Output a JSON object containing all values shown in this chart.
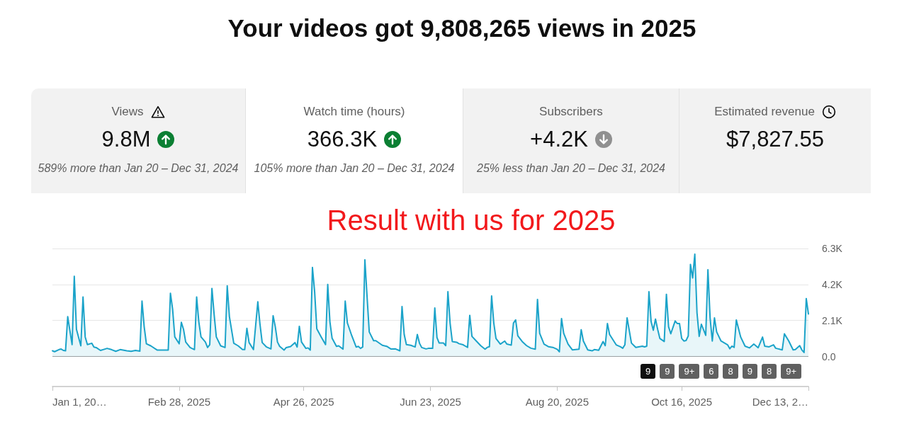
{
  "chart_data": [
    {
      "type": "other",
      "title": "Your videos got 9,808,265 views in 2025",
      "categories": [
        "Views",
        "Watch time (hours)",
        "Subscribers",
        "Estimated revenue"
      ],
      "value_labels": [
        "9.8M",
        "366.3K",
        "+4.2K",
        "$7,827.55"
      ],
      "annotations": [
        "589% more than Jan 20 – Dec 31, 2024",
        "105% more than Jan 20 – Dec 31, 2024",
        "25% less than Jan 20 – Dec 31, 2024"
      ]
    },
    {
      "type": "area",
      "title": "Result with us for 2025",
      "x": [
        "2025-01-01",
        "2025-01-02",
        "2025-01-04",
        "2025-01-05",
        "2025-01-06",
        "2025-01-07",
        "2025-01-08",
        "2025-01-10",
        "2025-01-11",
        "2025-01-12",
        "2025-01-14",
        "2025-01-15",
        "2025-01-16",
        "2025-01-17",
        "2025-01-19",
        "2025-01-20",
        "2025-01-21",
        "2025-01-23",
        "2025-01-25",
        "2025-01-26",
        "2025-01-28",
        "2025-01-30",
        "2025-02-01",
        "2025-02-04",
        "2025-02-06",
        "2025-02-08",
        "2025-02-10",
        "2025-02-11",
        "2025-02-12",
        "2025-02-13",
        "2025-02-15",
        "2025-02-18",
        "2025-02-23",
        "2025-02-24",
        "2025-02-25",
        "2025-02-26",
        "2025-02-28",
        "2025-03-01",
        "2025-03-02",
        "2025-03-03",
        "2025-03-05",
        "2025-03-07",
        "2025-03-08",
        "2025-03-09",
        "2025-03-10",
        "2025-03-12",
        "2025-03-13",
        "2025-03-14",
        "2025-03-15",
        "2025-03-16",
        "2025-03-17",
        "2025-03-19",
        "2025-03-21",
        "2025-03-22",
        "2025-03-23",
        "2025-03-25",
        "2025-03-27",
        "2025-03-29",
        "2025-03-30",
        "2025-03-31",
        "2025-04-01",
        "2025-04-03",
        "2025-04-05",
        "2025-04-06",
        "2025-04-07",
        "2025-04-09",
        "2025-04-11",
        "2025-04-12",
        "2025-04-13",
        "2025-04-14",
        "2025-04-15",
        "2025-04-17",
        "2025-04-18",
        "2025-04-20",
        "2025-04-22",
        "2025-04-23",
        "2025-04-24",
        "2025-04-25",
        "2025-04-27",
        "2025-04-28",
        "2025-04-29",
        "2025-04-30",
        "2025-05-01",
        "2025-05-02",
        "2025-05-04",
        "2025-05-06",
        "2025-05-07",
        "2025-05-08",
        "2025-05-09",
        "2025-05-11",
        "2025-05-12",
        "2025-05-14",
        "2025-05-15",
        "2025-05-16",
        "2025-05-18",
        "2025-05-20",
        "2025-05-21",
        "2025-05-22",
        "2025-05-23",
        "2025-05-24",
        "2025-05-25",
        "2025-05-26",
        "2025-05-28",
        "2025-05-29",
        "2025-06-01",
        "2025-06-03",
        "2025-06-05",
        "2025-06-07",
        "2025-06-09",
        "2025-06-10",
        "2025-06-11",
        "2025-06-12",
        "2025-06-14",
        "2025-06-16",
        "2025-06-17",
        "2025-06-18",
        "2025-06-19",
        "2025-06-21",
        "2025-06-22",
        "2025-06-24",
        "2025-06-25",
        "2025-06-26",
        "2025-06-27",
        "2025-06-29",
        "2025-06-30",
        "2025-07-01",
        "2025-07-02",
        "2025-07-03",
        "2025-07-05",
        "2025-07-06",
        "2025-07-08",
        "2025-07-09",
        "2025-07-10",
        "2025-07-11",
        "2025-07-12",
        "2025-07-14",
        "2025-07-16",
        "2025-07-18",
        "2025-07-19",
        "2025-07-20",
        "2025-07-21",
        "2025-07-22",
        "2025-07-23",
        "2025-07-25",
        "2025-07-27",
        "2025-07-28",
        "2025-07-30",
        "2025-07-31",
        "2025-08-01",
        "2025-08-02",
        "2025-08-04",
        "2025-08-06",
        "2025-08-08",
        "2025-08-10",
        "2025-08-11",
        "2025-08-12",
        "2025-08-14",
        "2025-08-16",
        "2025-08-18",
        "2025-08-20",
        "2025-08-21",
        "2025-08-22",
        "2025-08-23",
        "2025-08-25",
        "2025-08-27",
        "2025-08-30",
        "2025-08-31",
        "2025-09-01",
        "2025-09-03",
        "2025-09-05",
        "2025-09-06",
        "2025-09-08",
        "2025-09-10",
        "2025-09-11",
        "2025-09-12",
        "2025-09-13",
        "2025-09-16",
        "2025-09-18",
        "2025-09-19",
        "2025-09-20",
        "2025-09-21",
        "2025-09-23",
        "2025-09-25",
        "2025-09-28",
        "2025-09-29",
        "2025-09-30",
        "2025-10-01",
        "2025-10-02",
        "2025-10-03",
        "2025-10-04",
        "2025-10-05",
        "2025-10-06",
        "2025-10-08",
        "2025-10-09",
        "2025-10-10",
        "2025-10-11",
        "2025-10-13",
        "2025-10-14",
        "2025-10-15",
        "2025-10-16",
        "2025-10-17",
        "2025-10-18",
        "2025-10-19",
        "2025-10-20",
        "2025-10-21",
        "2025-10-22",
        "2025-10-23",
        "2025-10-24",
        "2025-10-25",
        "2025-10-27",
        "2025-10-28",
        "2025-10-29",
        "2025-10-30",
        "2025-10-31",
        "2025-11-01",
        "2025-11-03",
        "2025-11-06",
        "2025-11-07",
        "2025-11-08",
        "2025-11-09",
        "2025-11-10",
        "2025-11-12",
        "2025-11-14",
        "2025-11-16",
        "2025-11-18",
        "2025-11-20",
        "2025-11-22",
        "2025-11-23",
        "2025-11-25",
        "2025-11-27",
        "2025-11-28",
        "2025-12-01",
        "2025-12-02",
        "2025-12-04",
        "2025-12-06",
        "2025-12-07",
        "2025-12-09",
        "2025-12-10",
        "2025-12-11",
        "2025-12-12",
        "2025-12-13"
      ],
      "series": [
        {
          "color": "#1ba3c9",
          "values": [
            330,
            280,
            400,
            430,
            350,
            330,
            2320,
            690,
            4680,
            1580,
            620,
            3470,
            1140,
            690,
            770,
            550,
            520,
            350,
            430,
            470,
            400,
            300,
            400,
            330,
            300,
            350,
            310,
            3230,
            1730,
            740,
            620,
            370,
            370,
            3690,
            2760,
            1140,
            740,
            1990,
            1580,
            840,
            520,
            400,
            3470,
            2020,
            1140,
            840,
            520,
            690,
            3970,
            2460,
            1140,
            620,
            520,
            4120,
            2320,
            770,
            620,
            400,
            400,
            1640,
            810,
            400,
            3190,
            1870,
            810,
            550,
            440,
            2380,
            1730,
            840,
            590,
            370,
            520,
            580,
            810,
            550,
            1760,
            840,
            470,
            500,
            370,
            5190,
            3790,
            1610,
            1140,
            690,
            4200,
            2020,
            1060,
            590,
            620,
            430,
            3230,
            1950,
            1210,
            550,
            590,
            470,
            550,
            5640,
            3500,
            1430,
            920,
            920,
            650,
            590,
            430,
            440,
            330,
            2910,
            1280,
            690,
            650,
            550,
            1280,
            770,
            520,
            440,
            470,
            470,
            2830,
            1100,
            780,
            780,
            630,
            3780,
            1950,
            870,
            830,
            750,
            680,
            600,
            530,
            2400,
            1170,
            900,
            630,
            420,
            530,
            570,
            3530,
            1950,
            1050,
            720,
            900,
            720,
            660,
            1950,
            2130,
            1200,
            870,
            630,
            480,
            420,
            3330,
            1350,
            720,
            570,
            530,
            420,
            270,
            2210,
            1350,
            720,
            380,
            420,
            1560,
            900,
            380,
            330,
            400,
            360,
            870,
            630,
            1920,
            1280,
            680,
            560,
            480,
            680,
            2250,
            780,
            530,
            600,
            560,
            600,
            3780,
            2030,
            1530,
            2180,
            1580,
            1050,
            870,
            3630,
            1730,
            1320,
            2070,
            1920,
            1920,
            1050,
            900,
            930,
            1200,
            5370,
            4580,
            5970,
            2550,
            1170,
            1880,
            1230,
            5060,
            2250,
            900,
            2250,
            1430,
            900,
            680,
            450,
            600,
            530,
            2130,
            1130,
            600,
            500,
            720,
            510,
            1130,
            600,
            560,
            680,
            480,
            380,
            1320,
            900,
            380,
            400,
            630,
            380,
            230,
            3380,
            2480
          ]
        }
      ],
      "xlim": [
        "2025-01-01",
        "2025-12-13"
      ],
      "xticks": [
        {
          "value": "2025-01-01",
          "label": "Jan 1, 20…"
        },
        {
          "value": "2025-02-28",
          "label": "Feb 28, 2025"
        },
        {
          "value": "2025-04-26",
          "label": "Apr 26, 2025"
        },
        {
          "value": "2025-06-23",
          "label": "Jun 23, 2025"
        },
        {
          "value": "2025-08-20",
          "label": "Aug 20, 2025"
        },
        {
          "value": "2025-10-16",
          "label": "Oct 16, 2025"
        },
        {
          "value": "2025-12-13",
          "label": "Dec 13, 2…"
        }
      ],
      "ylim": [
        0,
        6300
      ],
      "yticks": [
        {
          "value": 0,
          "label": "0.0"
        },
        {
          "value": 2100,
          "label": "2.1K"
        },
        {
          "value": 4200,
          "label": "4.2K"
        },
        {
          "value": 6300,
          "label": "6.3K"
        }
      ],
      "grid": "y",
      "marker": "none",
      "annotations": [
        "9",
        "9",
        "9+",
        "6",
        "8",
        "9",
        "8",
        "9+"
      ]
    }
  ]
}
